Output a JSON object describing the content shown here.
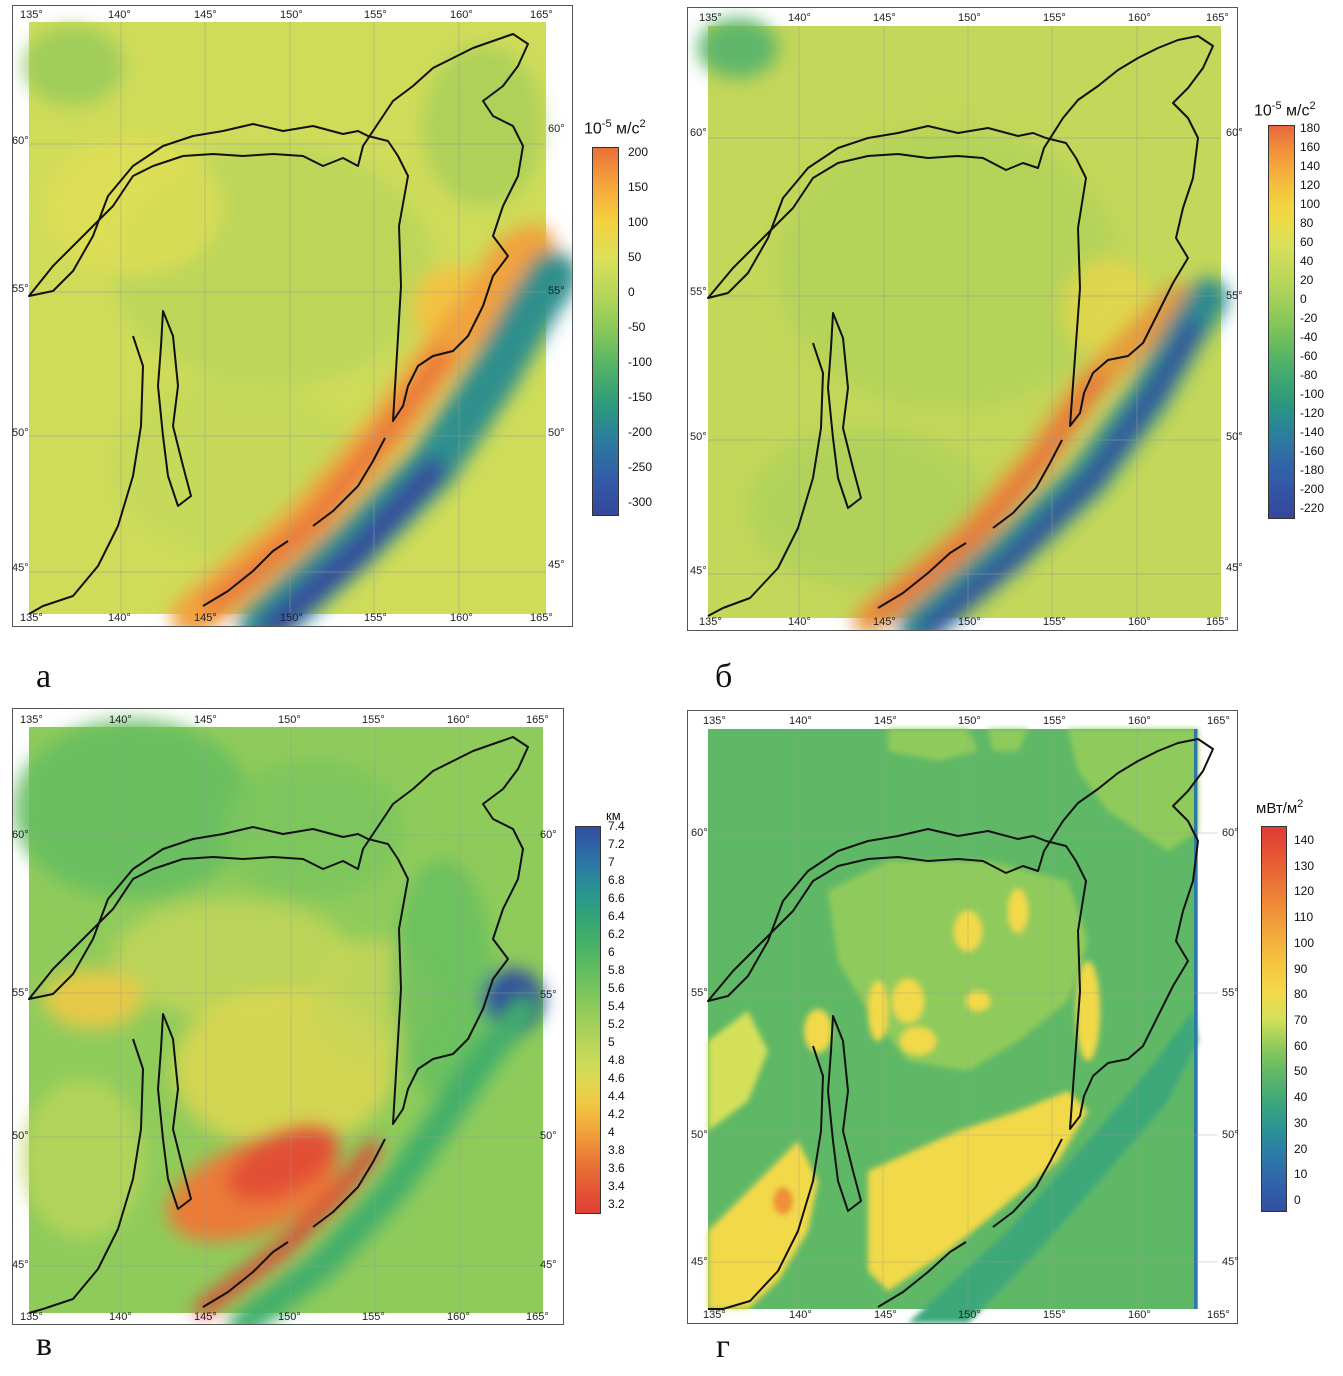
{
  "panels": [
    {
      "id": "a",
      "caption": "а",
      "unit": {
        "base": "10",
        "exp": "-5",
        "text": " м/с",
        "sup2": "2"
      },
      "colorbar_labels": [
        "200",
        "150",
        "100",
        "50",
        "0",
        "-50",
        "-100",
        "-150",
        "-200",
        "-250",
        "-300"
      ],
      "colorbar_colors": [
        "#e8703a",
        "#f6a43c",
        "#f3d23f",
        "#dbe05a",
        "#b5d65a",
        "#86c75a",
        "#52b267",
        "#2d9a7c",
        "#2d7aa0",
        "#325ca8",
        "#34489c"
      ],
      "lon_ticks": [
        "135°",
        "140°",
        "145°",
        "150°",
        "155°",
        "160°",
        "165°"
      ],
      "lat_ticks": [
        "60°",
        "55°",
        "50°",
        "45°"
      ]
    },
    {
      "id": "b",
      "caption": "б",
      "unit": {
        "base": "10",
        "exp": "-5",
        "text": " м/с",
        "sup2": "2"
      },
      "colorbar_labels": [
        "180",
        "160",
        "140",
        "120",
        "100",
        "80",
        "60",
        "40",
        "20",
        "0",
        "-20",
        "-40",
        "-60",
        "-80",
        "-100",
        "-120",
        "-140",
        "-160",
        "-180",
        "-200",
        "-220"
      ],
      "colorbar_colors": [
        "#e8663a",
        "#f08a3b",
        "#f6a43c",
        "#f6bd3e",
        "#f3d23f",
        "#e9dc49",
        "#dbe05a",
        "#c9db5b",
        "#b5d65a",
        "#9fcf5a",
        "#86c75a",
        "#6cbd5e",
        "#52b267",
        "#3ea673",
        "#2d9a7c",
        "#2b8a90",
        "#2d7aa0",
        "#3068a8",
        "#325ca8",
        "#3350a2",
        "#34489c"
      ],
      "lon_ticks": [
        "135°",
        "140°",
        "145°",
        "150°",
        "155°",
        "160°",
        "165°"
      ],
      "lat_ticks": [
        "60°",
        "55°",
        "50°",
        "45°"
      ]
    },
    {
      "id": "v",
      "caption": "в",
      "unit": {
        "base": "",
        "exp": "",
        "text": "км",
        "sup2": ""
      },
      "colorbar_labels": [
        "7.4",
        "7.2",
        "7",
        "6.8",
        "6.6",
        "6.4",
        "6.2",
        "6",
        "5.8",
        "5.6",
        "5.4",
        "5.2",
        "5",
        "4.8",
        "4.6",
        "4.4",
        "4.2",
        "4",
        "3.8",
        "3.6",
        "3.4",
        "3.2"
      ],
      "colorbar_colors": [
        "#324e9e",
        "#2f62a6",
        "#2c77a4",
        "#298b97",
        "#2a9b86",
        "#33a575",
        "#40ae6a",
        "#52b665",
        "#66be60",
        "#7cc55d",
        "#92cb5b",
        "#a8d15a",
        "#bcd65a",
        "#cfd958",
        "#e1d64d",
        "#efc945",
        "#f3b13e",
        "#f0963a",
        "#ea7c37",
        "#e66535",
        "#e35035",
        "#e03f36"
      ],
      "lon_ticks": [
        "135°",
        "140°",
        "145°",
        "150°",
        "155°",
        "160°",
        "165°"
      ],
      "lat_ticks": [
        "60°",
        "55°",
        "50°",
        "45°"
      ]
    },
    {
      "id": "g",
      "caption": "г",
      "unit": {
        "base": "",
        "exp": "",
        "text": "мВт/м",
        "sup2": "2"
      },
      "colorbar_labels": [
        "140",
        "130",
        "120",
        "110",
        "100",
        "90",
        "80",
        "70",
        "60",
        "50",
        "40",
        "30",
        "20",
        "10",
        "0"
      ],
      "colorbar_colors": [
        "#e03a35",
        "#e65535",
        "#ea7236",
        "#ef8f39",
        "#f4ab3c",
        "#f6c43f",
        "#f2d94a",
        "#d4e05a",
        "#8fcb5b",
        "#5fb866",
        "#3ea77a",
        "#2c9394",
        "#2d7aa8",
        "#3063ab",
        "#3350a0"
      ],
      "lon_ticks": [
        "135°",
        "140°",
        "145°",
        "150°",
        "155°",
        "160°",
        "165°"
      ],
      "lat_ticks": [
        "60°",
        "55°",
        "50°",
        "45°"
      ]
    }
  ]
}
